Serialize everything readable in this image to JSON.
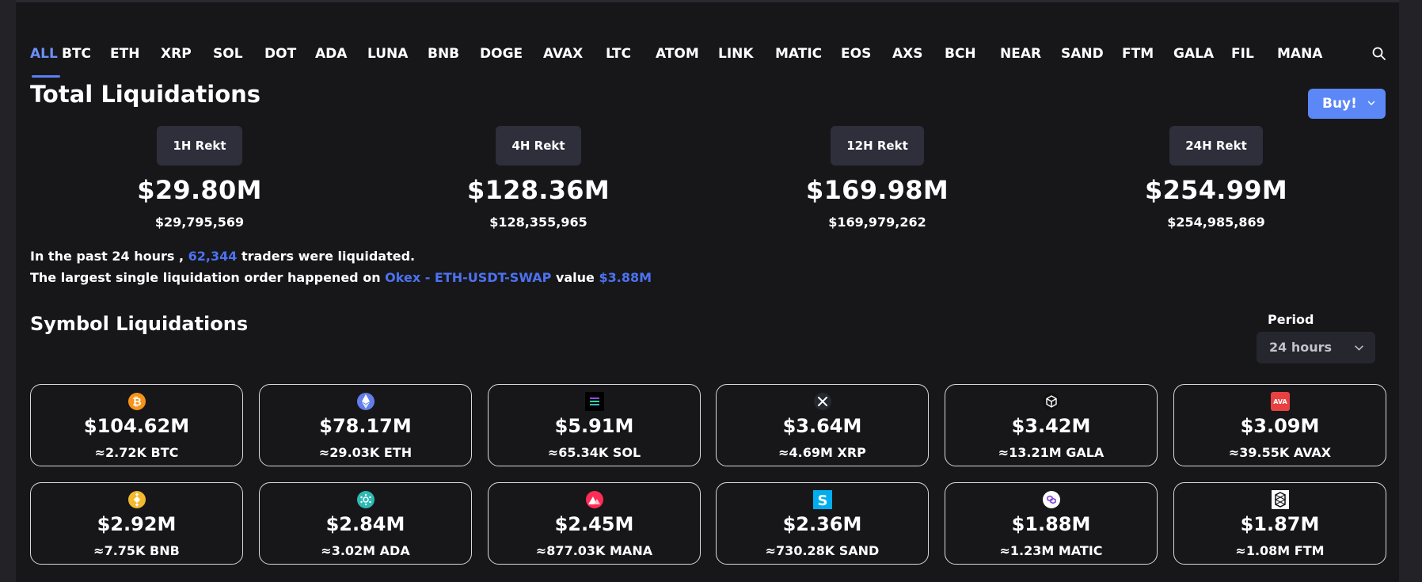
{
  "tabs": [
    "ALL",
    "BTC",
    "ETH",
    "XRP",
    "SOL",
    "DOT",
    "ADA",
    "LUNA",
    "BNB",
    "DOGE",
    "AVAX",
    "LTC",
    "ATOM",
    "LINK",
    "MATIC",
    "EOS",
    "AXS",
    "BCH",
    "NEAR",
    "SAND",
    "FTM",
    "GALA",
    "FIL",
    "MANA"
  ],
  "active_tab": "ALL",
  "total": {
    "title": "Total Liquidations",
    "buy_label": "Buy!",
    "rekt": [
      {
        "label": "1H Rekt",
        "big": "$29.80M",
        "small": "$29,795,569"
      },
      {
        "label": "4H Rekt",
        "big": "$128.36M",
        "small": "$128,355,965"
      },
      {
        "label": "12H Rekt",
        "big": "$169.98M",
        "small": "$169,979,262"
      },
      {
        "label": "24H Rekt",
        "big": "$254.99M",
        "small": "$254,985,869"
      }
    ]
  },
  "info": {
    "line1_prefix": "In the past 24 hours ,",
    "traders": "62,344",
    "line1_suffix": "traders were liquidated.",
    "line2_prefix": "The largest single liquidation order happened on",
    "order": "Okex - ETH-USDT-SWAP",
    "line2_mid": "value",
    "value": "$3.88M"
  },
  "symbol": {
    "title": "Symbol Liquidations",
    "period_label": "Period",
    "period_value": "24 hours",
    "cards": [
      {
        "icon": "bitcoin-icon",
        "color": "#f7931a",
        "amount": "$104.62M",
        "sub": "≈2.72K BTC"
      },
      {
        "icon": "ethereum-icon",
        "color": "#627eea",
        "amount": "$78.17M",
        "sub": "≈29.03K ETH"
      },
      {
        "icon": "solana-icon",
        "color": "#000000",
        "amount": "$5.91M",
        "sub": "≈65.34K SOL"
      },
      {
        "icon": "xrp-icon",
        "color": "#23292f",
        "amount": "$3.64M",
        "sub": "≈4.69M XRP"
      },
      {
        "icon": "gala-icon",
        "color": "#111111",
        "amount": "$3.42M",
        "sub": "≈13.21M GALA"
      },
      {
        "icon": "avax-icon",
        "color": "#e84142",
        "amount": "$3.09M",
        "sub": "≈39.55K AVAX"
      },
      {
        "icon": "bnb-icon",
        "color": "#f3ba2f",
        "amount": "$2.92M",
        "sub": "≈7.75K BNB"
      },
      {
        "icon": "cardano-icon",
        "color": "#2fb9b4",
        "amount": "$2.84M",
        "sub": "≈3.02M ADA"
      },
      {
        "icon": "decentraland-icon",
        "color": "#ff2d55",
        "amount": "$2.45M",
        "sub": "≈877.03K MANA"
      },
      {
        "icon": "sandbox-icon",
        "color": "#00adef",
        "amount": "$2.36M",
        "sub": "≈730.28K SAND"
      },
      {
        "icon": "polygon-icon",
        "color": "#8247e5",
        "amount": "$1.88M",
        "sub": "≈1.23M MATIC"
      },
      {
        "icon": "fantom-icon",
        "color": "#ffffff",
        "amount": "$1.87M",
        "sub": "≈1.08M FTM"
      }
    ]
  }
}
